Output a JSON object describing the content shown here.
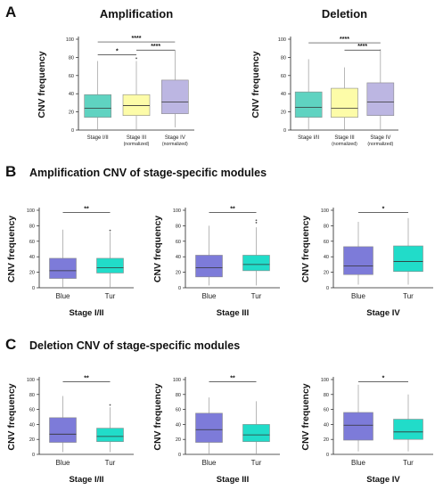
{
  "figure": {
    "panel_a_letter": "A",
    "panel_b_letter": "B",
    "panel_c_letter": "C",
    "panel_b_title": "Amplification CNV of stage-specific modules",
    "panel_c_title": "Deletion CNV of stage-specific modules"
  },
  "colors": {
    "teal": "#5fd3c1",
    "yellow": "#fdfca8",
    "lavender": "#bcb6e2",
    "blue": "#7d7bd9",
    "tur": "#21dcc9"
  },
  "chart_data": [
    {
      "id": "a-amp",
      "type": "box",
      "title": "Amplification",
      "ylabel": "CNV frequency",
      "xlabel": "",
      "ylim": [
        0,
        100
      ],
      "yticks": [
        0,
        20,
        40,
        60,
        80,
        100
      ],
      "categories": [
        [
          "Stage I/II"
        ],
        [
          "Stage III",
          "(normalized)"
        ],
        [
          "Stage IV",
          "(normalized)"
        ]
      ],
      "colors": [
        "teal",
        "yellow",
        "lavender"
      ],
      "boxes": [
        {
          "min": 0,
          "q1": 14,
          "median": 24,
          "q3": 39,
          "max": 76,
          "outliers": []
        },
        {
          "min": 0,
          "q1": 16,
          "median": 27,
          "q3": 39,
          "max": 76,
          "outliers": [
            79
          ]
        },
        {
          "min": 3,
          "q1": 18,
          "median": 31,
          "q3": 55,
          "max": 88,
          "outliers": []
        }
      ],
      "sig": [
        {
          "from": 0,
          "to": 2,
          "label": "****",
          "y": 97
        },
        {
          "from": 1,
          "to": 2,
          "label": "****",
          "y": 88
        },
        {
          "from": 0,
          "to": 1,
          "label": "*",
          "y": 83
        }
      ]
    },
    {
      "id": "a-del",
      "type": "box",
      "title": "Deletion",
      "ylabel": "CNV frequency",
      "xlabel": "",
      "ylim": [
        0,
        100
      ],
      "yticks": [
        0,
        20,
        40,
        60,
        80,
        100
      ],
      "categories": [
        [
          "Stage I/II"
        ],
        [
          "Stage III",
          "(normalized)"
        ],
        [
          "Stage IV",
          "(normalized)"
        ]
      ],
      "colors": [
        "teal",
        "yellow",
        "lavender"
      ],
      "boxes": [
        {
          "min": 0,
          "q1": 14,
          "median": 25,
          "q3": 42,
          "max": 78,
          "outliers": []
        },
        {
          "min": 0,
          "q1": 14,
          "median": 24,
          "q3": 46,
          "max": 69,
          "outliers": []
        },
        {
          "min": 0,
          "q1": 16,
          "median": 31,
          "q3": 52,
          "max": 89,
          "outliers": []
        }
      ],
      "sig": [
        {
          "from": 0,
          "to": 2,
          "label": "****",
          "y": 96
        },
        {
          "from": 1,
          "to": 2,
          "label": "****",
          "y": 88
        }
      ]
    },
    {
      "id": "b1",
      "type": "box",
      "xlabel": "Stage I/II",
      "ylabel": "CNV frequency",
      "ylim": [
        0,
        100
      ],
      "yticks": [
        0,
        20,
        40,
        60,
        80,
        100
      ],
      "categories": [
        [
          "Blue"
        ],
        [
          "Tur"
        ]
      ],
      "colors": [
        "blue",
        "tur"
      ],
      "boxes": [
        {
          "min": 0,
          "q1": 12,
          "median": 22,
          "q3": 38,
          "max": 75,
          "outliers": []
        },
        {
          "min": 0,
          "q1": 19,
          "median": 26,
          "q3": 38,
          "max": 72,
          "outliers": [
            74
          ]
        }
      ],
      "sig": [
        {
          "from": 0,
          "to": 1,
          "label": "**",
          "y": 97
        }
      ]
    },
    {
      "id": "b2",
      "type": "box",
      "xlabel": "Stage III",
      "ylabel": "CNV frequency",
      "ylim": [
        0,
        100
      ],
      "yticks": [
        0,
        20,
        40,
        60,
        80,
        100
      ],
      "categories": [
        [
          "Blue"
        ],
        [
          "Tur"
        ]
      ],
      "colors": [
        "blue",
        "tur"
      ],
      "boxes": [
        {
          "min": 3,
          "q1": 14,
          "median": 26,
          "q3": 42,
          "max": 80,
          "outliers": []
        },
        {
          "min": 3,
          "q1": 22,
          "median": 30,
          "q3": 42,
          "max": 78,
          "outliers": [
            84,
            87
          ]
        }
      ],
      "sig": [
        {
          "from": 0,
          "to": 1,
          "label": "**",
          "y": 97
        }
      ]
    },
    {
      "id": "b3",
      "type": "box",
      "xlabel": "Stage IV",
      "ylabel": "CNV frequency",
      "ylim": [
        0,
        100
      ],
      "yticks": [
        0,
        20,
        40,
        60,
        80,
        100
      ],
      "categories": [
        [
          "Blue"
        ],
        [
          "Tur"
        ]
      ],
      "colors": [
        "blue",
        "tur"
      ],
      "boxes": [
        {
          "min": 4,
          "q1": 17,
          "median": 28,
          "q3": 53,
          "max": 85,
          "outliers": []
        },
        {
          "min": 4,
          "q1": 21,
          "median": 34,
          "q3": 54,
          "max": 90,
          "outliers": []
        }
      ],
      "sig": [
        {
          "from": 0,
          "to": 1,
          "label": "*",
          "y": 97
        }
      ]
    },
    {
      "id": "c1",
      "type": "box",
      "xlabel": "Stage I/II",
      "ylabel": "CNV frequency",
      "ylim": [
        0,
        100
      ],
      "yticks": [
        0,
        20,
        40,
        60,
        80,
        100
      ],
      "categories": [
        [
          "Blue"
        ],
        [
          "Tur"
        ]
      ],
      "colors": [
        "blue",
        "tur"
      ],
      "boxes": [
        {
          "min": 3,
          "q1": 16,
          "median": 27,
          "q3": 49,
          "max": 78,
          "outliers": []
        },
        {
          "min": 3,
          "q1": 17,
          "median": 24,
          "q3": 35,
          "max": 63,
          "outliers": [
            66
          ]
        }
      ],
      "sig": [
        {
          "from": 0,
          "to": 1,
          "label": "**",
          "y": 97
        }
      ]
    },
    {
      "id": "c2",
      "type": "box",
      "xlabel": "Stage III",
      "ylabel": "CNV frequency",
      "ylim": [
        0,
        100
      ],
      "yticks": [
        0,
        20,
        40,
        60,
        80,
        100
      ],
      "categories": [
        [
          "Blue"
        ],
        [
          "Tur"
        ]
      ],
      "colors": [
        "blue",
        "tur"
      ],
      "boxes": [
        {
          "min": 0,
          "q1": 16,
          "median": 33,
          "q3": 55,
          "max": 76,
          "outliers": []
        },
        {
          "min": 0,
          "q1": 17,
          "median": 26,
          "q3": 40,
          "max": 71,
          "outliers": []
        }
      ],
      "sig": [
        {
          "from": 0,
          "to": 1,
          "label": "**",
          "y": 97
        }
      ]
    },
    {
      "id": "c3",
      "type": "box",
      "xlabel": "Stage IV",
      "ylabel": "CNV frequency",
      "ylim": [
        0,
        100
      ],
      "yticks": [
        0,
        20,
        40,
        60,
        80,
        100
      ],
      "categories": [
        [
          "Blue"
        ],
        [
          "Tur"
        ]
      ],
      "colors": [
        "blue",
        "tur"
      ],
      "boxes": [
        {
          "min": 4,
          "q1": 19,
          "median": 39,
          "q3": 56,
          "max": 93,
          "outliers": []
        },
        {
          "min": 4,
          "q1": 20,
          "median": 30,
          "q3": 47,
          "max": 80,
          "outliers": []
        }
      ],
      "sig": [
        {
          "from": 0,
          "to": 1,
          "label": "*",
          "y": 97
        }
      ]
    }
  ]
}
